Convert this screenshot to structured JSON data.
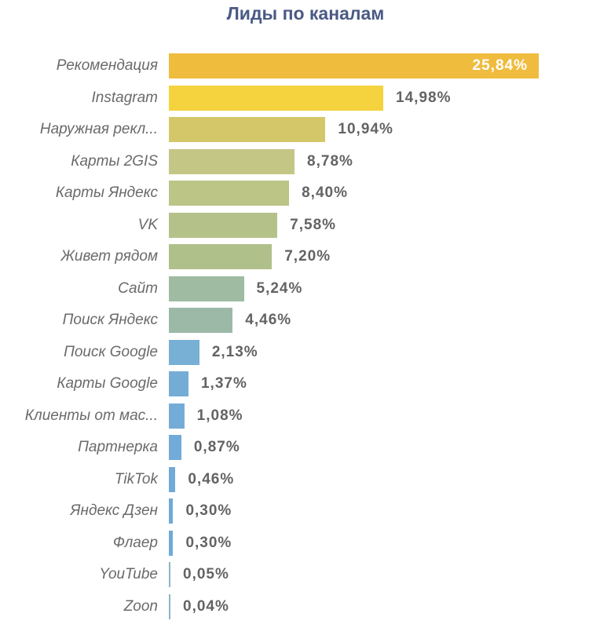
{
  "title": "Лиды по каналам",
  "chart_data": {
    "type": "bar",
    "orientation": "horizontal",
    "title": "Лиды по каналам",
    "xlabel": "",
    "ylabel": "",
    "grid": false,
    "legend": null,
    "unit": "%",
    "categories": [
      "Рекомендация",
      "Instagram",
      "Наружная рекл...",
      "Карты 2GIS",
      "Карты Яндекс",
      "VK",
      "Живет рядом",
      "Сайт",
      "Поиск Яндекс",
      "Поиск Google",
      "Карты Google",
      "Клиенты от мас...",
      "Партнерка",
      "TikTok",
      "Яндекс Дзен",
      "Флаер",
      "YouTube",
      "Zoon"
    ],
    "values": [
      25.84,
      14.98,
      10.94,
      8.78,
      8.4,
      7.58,
      7.2,
      5.24,
      4.46,
      2.13,
      1.37,
      1.08,
      0.87,
      0.46,
      0.3,
      0.3,
      0.05,
      0.04
    ],
    "value_labels": [
      "25,84%",
      "14,98%",
      "10,94%",
      "8,78%",
      "8,40%",
      "7,58%",
      "7,20%",
      "5,24%",
      "4,46%",
      "2,13%",
      "1,37%",
      "1,08%",
      "0,87%",
      "0,46%",
      "0,30%",
      "0,30%",
      "0,05%",
      "0,04%"
    ],
    "colors": [
      "#efbc3e",
      "#f4d33e",
      "#d4c76a",
      "#c4c685",
      "#bcc486",
      "#b4c28a",
      "#b0c08a",
      "#9fbba2",
      "#9cb9a8",
      "#78afd4",
      "#75acd6",
      "#74acd8",
      "#72abd9",
      "#70aad9",
      "#6eaad9",
      "#6eaad9",
      "#8fb2c4",
      "#8fb2c4"
    ],
    "xlim": [
      0,
      25.84
    ]
  }
}
